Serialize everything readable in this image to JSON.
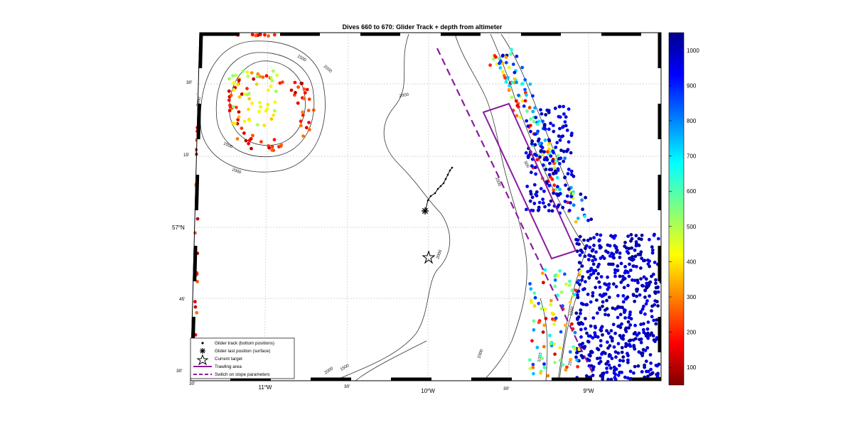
{
  "figure": {
    "title": "Dives 660 to 670: Glider Track + depth from altimeter"
  },
  "axes": {
    "lon_ticks": [
      {
        "label": "30'",
        "sup": false,
        "lon": -11.5
      },
      {
        "label": "11",
        "sup": "o",
        "suffix": "W",
        "lon": -11.0
      },
      {
        "label": "30'",
        "sup": false,
        "lon": -10.5
      },
      {
        "label": "10",
        "sup": "o",
        "suffix": "W",
        "lon": -10.0
      },
      {
        "label": "30'",
        "sup": false,
        "lon": -9.5
      },
      {
        "label": "9",
        "sup": "o",
        "suffix": "W",
        "lon": -9.0
      }
    ],
    "lat_ticks": [
      {
        "label": "30'",
        "lat": 57.5
      },
      {
        "label": "15'",
        "lat": 57.25
      },
      {
        "label": "57",
        "sup": "o",
        "suffix": "N",
        "lat": 57.0
      },
      {
        "label": "45'",
        "lat": 56.75
      },
      {
        "label": "30'",
        "lat": 56.5
      }
    ]
  },
  "colorbar": {
    "ticks": [
      "1000",
      "900",
      "800",
      "700",
      "600",
      "500",
      "400",
      "300",
      "200",
      "100"
    ],
    "range": [
      50,
      1050
    ],
    "colormap": "jet"
  },
  "contour_labels": [
    "1500",
    "2000",
    "2000",
    "1500",
    "2000",
    "2000",
    "2000",
    "1500",
    "2000",
    "1500",
    "1500",
    "1000",
    "200",
    "500",
    "1000"
  ],
  "legend": {
    "items": [
      {
        "label": "Glider track (bottom positions)",
        "symbol": "dot"
      },
      {
        "label": "Glider last position (surface)",
        "symbol": "asterisk"
      },
      {
        "label": "Current target",
        "symbol": "star"
      },
      {
        "label": "Trawling area",
        "symbol": "solid-purple"
      },
      {
        "label": "Switch on slope parameters",
        "symbol": "dashed-purple"
      }
    ]
  },
  "colors": {
    "trawling": "#8b1a9e",
    "frame_dark": "#000000"
  }
}
